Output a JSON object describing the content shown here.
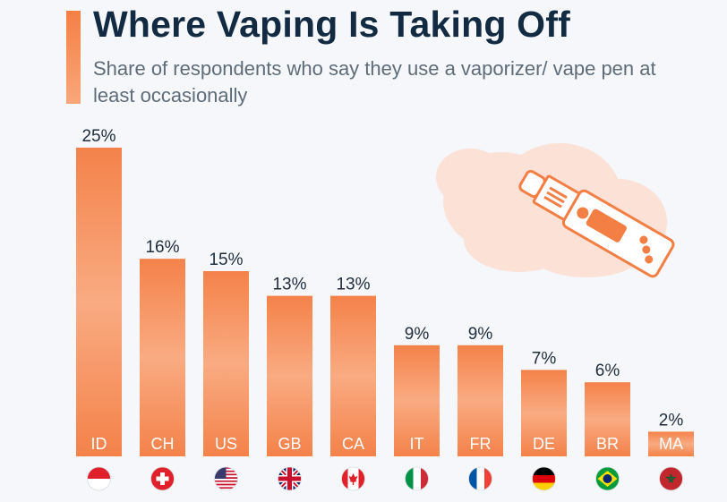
{
  "header": {
    "title": "Where Vaping Is Taking Off",
    "subtitle": "Share of respondents who say they use a vaporizer/ vape pen at least occasionally"
  },
  "colors": {
    "bar_top": "#f4824a",
    "bar_mid": "#f9ab82",
    "bar_bottom": "#f4824a",
    "accent": "#f47f45",
    "title": "#132a43",
    "subtitle": "#5e6c7a",
    "cloud": "#fbe1d6",
    "vape_stroke": "#f47f45"
  },
  "illustration": {
    "icon": "vape-pen-cloud-icon"
  },
  "chart_data": {
    "type": "bar",
    "categories": [
      "ID",
      "CH",
      "US",
      "GB",
      "CA",
      "IT",
      "FR",
      "DE",
      "BR",
      "MA"
    ],
    "values": [
      25,
      16,
      15,
      13,
      13,
      9,
      9,
      7,
      6,
      2
    ],
    "value_labels": [
      "25%",
      "16%",
      "15%",
      "13%",
      "13%",
      "9%",
      "9%",
      "7%",
      "6%",
      "2%"
    ],
    "flags": [
      "indonesia-flag-icon",
      "switzerland-flag-icon",
      "usa-flag-icon",
      "uk-flag-icon",
      "canada-flag-icon",
      "italy-flag-icon",
      "france-flag-icon",
      "germany-flag-icon",
      "brazil-flag-icon",
      "morocco-flag-icon"
    ],
    "ylim": [
      0,
      25
    ],
    "grid": false,
    "legend": "none"
  }
}
